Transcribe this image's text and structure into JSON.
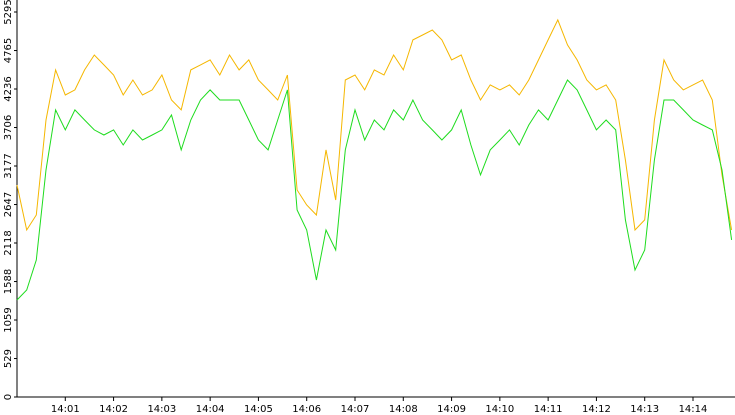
{
  "chart_data": {
    "type": "line",
    "x": [
      0,
      0.2,
      0.4,
      0.6,
      0.8,
      1,
      1.2,
      1.4,
      1.6,
      1.8,
      2,
      2.2,
      2.4,
      2.6,
      2.8,
      3,
      3.2,
      3.4,
      3.6,
      3.8,
      4,
      4.2,
      4.4,
      4.6,
      4.8,
      5,
      5.2,
      5.4,
      5.6,
      5.8,
      6,
      6.2,
      6.4,
      6.6,
      6.8,
      7,
      7.2,
      7.4,
      7.6,
      7.8,
      8,
      8.2,
      8.4,
      8.6,
      8.8,
      9,
      9.2,
      9.4,
      9.6,
      9.8,
      10,
      10.2,
      10.4,
      10.6,
      10.8,
      11,
      11.2,
      11.4,
      11.6,
      11.8,
      12,
      12.2,
      12.4,
      12.6,
      12.8,
      13,
      13.2,
      13.4,
      13.6,
      13.8,
      14,
      14.2,
      14.4,
      14.6,
      14.8
    ],
    "series": [
      {
        "color": "#f5b700",
        "values": [
          2916,
          2297,
          2503,
          3810,
          4498,
          4154,
          4223,
          4498,
          4704,
          4567,
          4429,
          4154,
          4360,
          4154,
          4223,
          4429,
          4085,
          3948,
          4498,
          4567,
          4636,
          4429,
          4704,
          4498,
          4636,
          4360,
          4223,
          4085,
          4429,
          2847,
          2641,
          2503,
          3398,
          2710,
          4360,
          4429,
          4223,
          4498,
          4429,
          4704,
          4498,
          4911,
          4979,
          5048,
          4911,
          4636,
          4704,
          4360,
          4085,
          4292,
          4223,
          4292,
          4154,
          4360,
          4636,
          4911,
          5186,
          4842,
          4636,
          4360,
          4223,
          4292,
          4085,
          3260,
          2297,
          2435,
          3810,
          4636,
          4360,
          4223,
          4292,
          4360,
          4085,
          3054,
          2297
        ]
      },
      {
        "color": "#1edc1e",
        "values": [
          1334,
          1472,
          1884,
          3122,
          3948,
          3673,
          3948,
          3810,
          3673,
          3604,
          3673,
          3466,
          3673,
          3535,
          3604,
          3673,
          3879,
          3398,
          3810,
          4085,
          4223,
          4085,
          4085,
          4085,
          3810,
          3535,
          3398,
          3810,
          4223,
          2572,
          2297,
          1609,
          2297,
          2022,
          3398,
          3948,
          3535,
          3810,
          3673,
          3948,
          3810,
          4085,
          3810,
          3673,
          3535,
          3673,
          3948,
          3466,
          3054,
          3398,
          3535,
          3673,
          3466,
          3741,
          3948,
          3810,
          4085,
          4360,
          4223,
          3948,
          3673,
          3810,
          3673,
          2435,
          1747,
          2022,
          3260,
          4085,
          4085,
          3948,
          3810,
          3741,
          3673,
          3122,
          2160
        ]
      }
    ],
    "xlim": [
      0,
      14.87
    ],
    "xticks": [
      {
        "value": 1,
        "label": "14:01"
      },
      {
        "value": 2,
        "label": "14:02"
      },
      {
        "value": 3,
        "label": "14:03"
      },
      {
        "value": 4,
        "label": "14:04"
      },
      {
        "value": 5,
        "label": "14:05"
      },
      {
        "value": 6,
        "label": "14:06"
      },
      {
        "value": 7,
        "label": "14:07"
      },
      {
        "value": 8,
        "label": "14:08"
      },
      {
        "value": 9,
        "label": "14:09"
      },
      {
        "value": 10,
        "label": "14:10"
      },
      {
        "value": 11,
        "label": "14:11"
      },
      {
        "value": 12,
        "label": "14:12"
      },
      {
        "value": 13,
        "label": "14:13"
      },
      {
        "value": 14,
        "label": "14:14"
      }
    ],
    "ylim": [
      0,
      5460
    ],
    "yticks": [
      0,
      529,
      1059,
      1588,
      2118,
      2647,
      3177,
      3706,
      4236,
      4765,
      5295
    ]
  }
}
